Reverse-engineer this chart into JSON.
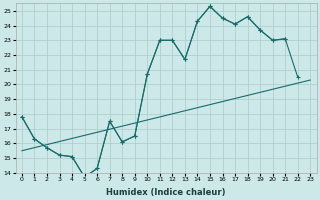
{
  "xlabel": "Humidex (Indice chaleur)",
  "background_color": "#cce8e8",
  "grid_color": "#aacccc",
  "line_color": "#1a6b6b",
  "ylim": [
    14,
    25.5
  ],
  "yticks": [
    14,
    15,
    16,
    17,
    18,
    19,
    20,
    21,
    22,
    23,
    24,
    25
  ],
  "xlim": [
    -0.5,
    23.5
  ],
  "x_hours": [
    0,
    1,
    2,
    3,
    4,
    5,
    6,
    7,
    8,
    9,
    10,
    11,
    12,
    13,
    14,
    15,
    16,
    17,
    18,
    19,
    20,
    21,
    22,
    23
  ],
  "line1_x": [
    0,
    1,
    2,
    3,
    4,
    5,
    6,
    7,
    8,
    9,
    10,
    11,
    12,
    13,
    14,
    15,
    16,
    17,
    18,
    19,
    20,
    21
  ],
  "line1_y": [
    17.8,
    16.3,
    15.7,
    15.2,
    15.1,
    13.7,
    14.3,
    17.5,
    16.1,
    16.5,
    20.7,
    23.0,
    23.0,
    21.7,
    24.3,
    25.3,
    24.5,
    24.1,
    24.6,
    23.7,
    23.0,
    23.1
  ],
  "line2_x": [
    0,
    1,
    2,
    3,
    4,
    5,
    6,
    7,
    8,
    9,
    10,
    11,
    12,
    13,
    14,
    15,
    16,
    17,
    18,
    19,
    20,
    21,
    22
  ],
  "line2_y": [
    17.8,
    16.3,
    15.7,
    15.2,
    15.1,
    13.7,
    14.3,
    17.5,
    16.1,
    16.5,
    20.7,
    23.0,
    23.0,
    21.7,
    24.3,
    25.3,
    24.5,
    24.1,
    24.6,
    23.7,
    23.0,
    23.1,
    20.5
  ],
  "line3_x": [
    0,
    23
  ],
  "line3_y": [
    15.5,
    20.3
  ]
}
